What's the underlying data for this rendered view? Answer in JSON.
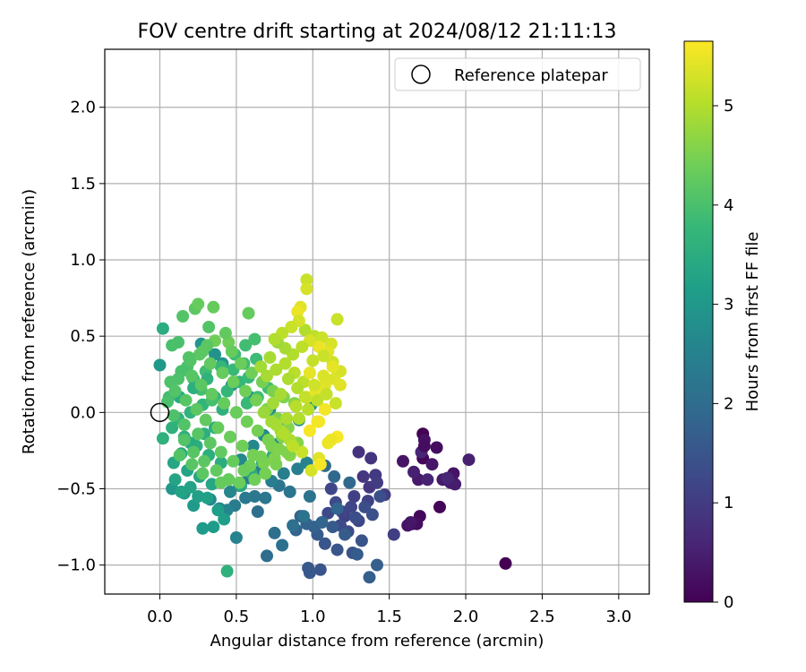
{
  "chart_data": {
    "type": "scatter",
    "title": "FOV centre drift starting at 2024/08/12 21:11:13",
    "xlabel": "Angular distance from reference (arcmin)",
    "ylabel": "Rotation from reference (arcmin)",
    "xlim": [
      -0.36,
      3.2
    ],
    "ylim": [
      -1.19,
      2.38
    ],
    "x_ticks": [
      0.0,
      0.5,
      1.0,
      1.5,
      2.0,
      2.5,
      3.0
    ],
    "x_tick_labels": [
      "0.0",
      "0.5",
      "1.0",
      "1.5",
      "2.0",
      "2.5",
      "3.0"
    ],
    "y_ticks": [
      -1.0,
      -0.5,
      0.0,
      0.5,
      1.0,
      1.5,
      2.0
    ],
    "y_tick_labels": [
      "−1.0",
      "−0.5",
      "0.0",
      "0.5",
      "1.0",
      "1.5",
      "2.0"
    ],
    "grid": true,
    "legend": {
      "placement": "top-right",
      "entries": [
        "Reference platepar"
      ]
    },
    "reference_point": {
      "label": "Reference platepar",
      "x": 0.0,
      "y": 0.0,
      "marker": "open-circle"
    },
    "colorbar": {
      "label": "Hours from first FF file",
      "colormap": "viridis",
      "range": [
        0,
        5.65
      ],
      "ticks": [
        0,
        1,
        2,
        3,
        4,
        5
      ],
      "tick_labels": [
        "0",
        "1",
        "2",
        "3",
        "4",
        "5"
      ]
    },
    "colormap_stops": [
      "#440154",
      "#482878",
      "#3e4989",
      "#31688e",
      "#26828e",
      "#1f9e89",
      "#35b779",
      "#6ece58",
      "#b5de2b",
      "#fde725"
    ],
    "series": [
      {
        "x": [
          1.72,
          2.26,
          1.83,
          1.7,
          1.65,
          1.72,
          1.68,
          1.81,
          1.73,
          1.92,
          1.59,
          1.78,
          1.69,
          1.85,
          1.93,
          1.9,
          1.62,
          2.02,
          1.66,
          1.75,
          1.71,
          1.88,
          1.64,
          1.73
        ],
        "y": [
          -0.14,
          -0.99,
          -0.62,
          -0.68,
          -0.73,
          -0.3,
          -0.73,
          -0.23,
          -0.18,
          -0.4,
          -0.32,
          -0.34,
          -0.44,
          -0.44,
          -0.47,
          -0.46,
          -0.74,
          -0.31,
          -0.39,
          -0.44,
          -0.26,
          -0.43,
          -0.72,
          -0.22
        ],
        "hours": [
          0.0,
          0.0,
          0.05,
          0.1,
          0.15,
          0.1,
          0.2,
          0.2,
          0.25,
          0.3,
          0.3,
          0.35,
          0.4,
          0.4,
          0.45,
          0.45,
          0.3,
          0.5,
          0.5,
          0.55,
          0.6,
          0.6,
          0.35,
          0.2
        ]
      },
      {
        "x": [
          1.3,
          1.38,
          1.33,
          1.37,
          1.41,
          1.42,
          1.47,
          1.53,
          1.36,
          1.27,
          1.21,
          1.19,
          1.25,
          1.3,
          1.12,
          1.15,
          1.1,
          1.18,
          1.23,
          1.28,
          1.34,
          1.39,
          1.44,
          1.32,
          1.26,
          1.16,
          1.08,
          1.05,
          0.98,
          0.97,
          1.03,
          1.13,
          1.21,
          1.29,
          1.37,
          1.42,
          1.01,
          0.92,
          0.89,
          0.96,
          1.06,
          1.16,
          1.24,
          1.14,
          1.08
        ],
        "y": [
          -0.26,
          -0.3,
          -0.42,
          -0.49,
          -0.41,
          -0.46,
          -0.54,
          -0.8,
          -0.58,
          -0.55,
          -0.68,
          -0.65,
          -0.62,
          -0.71,
          -0.5,
          -0.59,
          -0.66,
          -0.74,
          -0.78,
          -0.69,
          -0.62,
          -0.67,
          -0.55,
          -0.84,
          -0.92,
          -0.9,
          -0.86,
          -1.03,
          -1.05,
          -1.02,
          -0.8,
          -0.75,
          -0.8,
          -0.93,
          -1.08,
          -1.0,
          -0.75,
          -0.68,
          -0.77,
          -0.73,
          -0.72,
          -0.63,
          -0.46,
          -0.42,
          -0.35
        ],
        "hours": [
          0.8,
          0.85,
          0.9,
          0.9,
          0.95,
          1.0,
          1.0,
          1.05,
          1.1,
          1.1,
          1.1,
          1.15,
          1.2,
          1.2,
          1.2,
          1.25,
          1.25,
          1.3,
          1.3,
          1.35,
          1.35,
          1.4,
          1.4,
          1.45,
          1.45,
          1.5,
          1.5,
          1.5,
          1.55,
          1.55,
          1.6,
          1.6,
          1.65,
          1.65,
          1.7,
          1.7,
          1.75,
          1.75,
          1.8,
          1.8,
          1.85,
          1.85,
          1.9,
          1.9,
          1.95
        ]
      },
      {
        "x": [
          0.7,
          0.64,
          0.75,
          0.8,
          0.87,
          0.94,
          0.98,
          0.85,
          0.78,
          0.69,
          0.62,
          0.56,
          0.52,
          0.49,
          0.58,
          0.66,
          0.73,
          0.81,
          0.9,
          0.96,
          0.5,
          0.44,
          0.39,
          0.33,
          0.46,
          0.53,
          0.61,
          0.68,
          0.76,
          0.83,
          0.91,
          0.99,
          0.72,
          0.59,
          0.47,
          0.41,
          0.36,
          0.3,
          0.27
        ],
        "y": [
          -0.94,
          -0.65,
          -0.79,
          -0.87,
          -0.74,
          -0.68,
          -0.55,
          -0.52,
          -0.48,
          -0.56,
          -0.55,
          -0.56,
          -0.48,
          -0.61,
          -0.43,
          -0.38,
          -0.45,
          -0.4,
          -0.37,
          -0.33,
          -0.82,
          -0.64,
          -0.63,
          -0.57,
          -0.52,
          -0.31,
          -0.22,
          -0.15,
          -0.21,
          -0.1,
          -0.05,
          0.05,
          0.02,
          0.1,
          0.18,
          0.32,
          0.38,
          0.42,
          0.45
        ],
        "hours": [
          2.0,
          2.05,
          2.05,
          2.1,
          2.1,
          2.15,
          2.15,
          2.2,
          2.2,
          2.25,
          2.25,
          2.3,
          2.3,
          2.35,
          2.35,
          2.4,
          2.4,
          2.45,
          2.45,
          2.5,
          2.5,
          2.55,
          2.55,
          2.6,
          2.6,
          2.65,
          2.65,
          2.7,
          2.7,
          2.75,
          2.75,
          2.8,
          2.8,
          2.85,
          2.85,
          2.9,
          2.9,
          2.95,
          2.95
        ]
      },
      {
        "x": [
          0.0,
          0.08,
          0.16,
          0.22,
          0.28,
          0.35,
          0.42,
          0.38,
          0.31,
          0.25,
          0.2,
          0.14,
          0.1,
          0.18,
          0.26,
          0.34,
          0.45,
          0.53,
          0.6,
          0.67,
          0.74,
          0.4,
          0.32,
          0.24,
          0.16,
          0.08,
          0.12,
          0.2,
          0.28,
          0.36,
          0.44,
          0.52,
          0.58,
          0.48,
          0.55,
          0.63,
          0.3,
          0.22,
          0.27,
          0.34,
          0.41,
          0.5,
          0.57,
          0.64,
          0.71,
          0.36,
          0.29,
          0.2,
          0.14,
          0.09,
          0.13,
          0.22,
          0.31,
          0.4,
          0.49,
          0.56,
          0.62
        ],
        "y": [
          0.31,
          -0.5,
          -0.53,
          -0.61,
          -0.76,
          -0.75,
          -0.7,
          -0.64,
          -0.56,
          -0.55,
          -0.49,
          -0.52,
          -0.44,
          -0.38,
          -0.42,
          -0.47,
          -0.44,
          -0.48,
          -0.4,
          -0.33,
          -0.28,
          -0.33,
          -0.28,
          -0.22,
          -0.16,
          -0.1,
          -0.04,
          0.0,
          0.05,
          0.1,
          0.14,
          0.2,
          0.23,
          0.28,
          0.32,
          0.35,
          0.27,
          0.22,
          0.15,
          0.08,
          0.02,
          0.0,
          0.06,
          0.1,
          0.16,
          -0.1,
          -0.14,
          -0.2,
          -0.27,
          -0.33,
          0.1,
          0.16,
          0.22,
          0.3,
          0.38,
          0.44,
          0.48
        ],
        "hours": [
          3.0,
          3.0,
          3.05,
          3.05,
          3.1,
          3.1,
          3.15,
          3.15,
          3.2,
          3.2,
          3.25,
          3.25,
          3.3,
          3.3,
          3.35,
          3.35,
          3.4,
          3.4,
          3.45,
          3.45,
          3.5,
          3.5,
          3.55,
          3.55,
          3.6,
          3.6,
          3.65,
          3.65,
          3.7,
          3.7,
          3.75,
          3.75,
          3.8,
          3.8,
          3.85,
          3.85,
          3.9,
          3.9,
          3.95,
          3.95,
          3.6,
          3.7,
          3.8,
          3.9,
          3.9,
          3.5,
          3.55,
          3.45,
          3.4,
          3.35,
          3.45,
          3.55,
          3.65,
          3.75,
          3.85,
          3.9,
          3.95
        ]
      },
      {
        "x": [
          0.02,
          0.02,
          0.06,
          0.08,
          0.12,
          0.15,
          0.18,
          0.23,
          0.25,
          0.32,
          0.35,
          0.45,
          0.58,
          0.36,
          0.28,
          0.2,
          0.14,
          0.07,
          0.1,
          0.17,
          0.24,
          0.3,
          0.38,
          0.46,
          0.54,
          0.61,
          0.68,
          0.75,
          0.16,
          0.22,
          0.29,
          0.37,
          0.45,
          0.52,
          0.59,
          0.66,
          0.73,
          0.8,
          0.26,
          0.33,
          0.41,
          0.48,
          0.56,
          0.63,
          0.7,
          0.77,
          0.84,
          0.21,
          0.27,
          0.34,
          0.42,
          0.5,
          0.57,
          0.64,
          0.71,
          0.78,
          0.85,
          0.44,
          0.31,
          0.19,
          0.12,
          0.05,
          0.09,
          0.16,
          0.25,
          0.33,
          0.4,
          0.48,
          0.55,
          0.62,
          0.69,
          0.76,
          0.83,
          0.9,
          0.43,
          0.47,
          0.53,
          0.6,
          0.67,
          0.74,
          0.81,
          0.88,
          0.4,
          0.28,
          0.21,
          0.13
        ],
        "y": [
          0.55,
          -0.17,
          0.1,
          0.44,
          0.46,
          0.63,
          0.3,
          0.68,
          0.71,
          0.56,
          0.69,
          0.46,
          0.65,
          0.47,
          0.4,
          0.34,
          0.27,
          0.2,
          0.14,
          0.08,
          0.02,
          -0.05,
          -0.1,
          -0.16,
          -0.22,
          -0.28,
          -0.33,
          -0.3,
          -0.18,
          -0.26,
          -0.32,
          -0.38,
          -0.44,
          -0.46,
          -0.35,
          -0.29,
          -0.22,
          -0.16,
          0.38,
          0.32,
          0.26,
          0.2,
          0.14,
          0.08,
          0.02,
          -0.04,
          -0.1,
          0.24,
          0.18,
          0.12,
          0.06,
          0.0,
          -0.06,
          -0.12,
          -0.18,
          -0.24,
          -0.28,
          -1.04,
          0.44,
          0.36,
          0.22,
          0.07,
          -0.02,
          -0.08,
          -0.14,
          -0.2,
          -0.26,
          -0.32,
          -0.38,
          -0.44,
          -0.4,
          -0.34,
          -0.26,
          -0.2,
          0.52,
          0.4,
          0.32,
          0.26,
          0.2,
          0.14,
          0.1,
          0.06,
          -0.46,
          -0.4,
          -0.34,
          -0.28
        ],
        "hours": [
          3.5,
          3.6,
          3.9,
          4.0,
          4.0,
          4.1,
          4.0,
          4.2,
          4.3,
          4.1,
          4.3,
          4.4,
          4.3,
          4.4,
          4.2,
          4.1,
          4.0,
          4.05,
          4.1,
          4.15,
          4.2,
          4.25,
          4.3,
          4.35,
          4.4,
          4.45,
          4.5,
          4.55,
          4.1,
          4.15,
          4.2,
          4.25,
          4.3,
          4.35,
          4.4,
          4.45,
          4.5,
          4.55,
          4.2,
          4.25,
          4.3,
          4.35,
          4.4,
          4.45,
          4.5,
          4.55,
          4.6,
          4.15,
          4.2,
          4.25,
          4.3,
          4.35,
          4.4,
          4.45,
          4.5,
          4.55,
          4.6,
          3.6,
          4.2,
          4.1,
          4.05,
          4.0,
          4.05,
          4.1,
          4.15,
          4.2,
          4.25,
          4.3,
          4.35,
          4.4,
          4.45,
          4.5,
          4.55,
          4.6,
          4.25,
          4.3,
          4.35,
          4.4,
          4.45,
          4.5,
          4.55,
          4.6,
          4.3,
          4.2,
          4.15,
          4.1
        ]
      },
      {
        "x": [
          0.96,
          0.96,
          0.92,
          0.9,
          0.95,
          1.01,
          1.06,
          1.12,
          1.16,
          1.1,
          1.04,
          0.98,
          0.93,
          0.87,
          0.82,
          0.77,
          0.72,
          0.66,
          0.7,
          0.76,
          0.82,
          0.88,
          0.94,
          1.0,
          1.07,
          1.13,
          1.18,
          1.14,
          1.08,
          1.02,
          0.96,
          0.9,
          0.84,
          0.79,
          0.74,
          0.68,
          0.73,
          0.79,
          0.85,
          0.91,
          0.97,
          1.03,
          1.09,
          1.15,
          1.16,
          1.1,
          1.04,
          0.99,
          0.93,
          0.87,
          0.81,
          0.76,
          0.83,
          0.89,
          0.95,
          1.01,
          1.07,
          1.13,
          1.08,
          1.03,
          0.98,
          0.91,
          0.86,
          0.8,
          0.75,
          1.05,
          1.12,
          1.18,
          1.04,
          0.98
        ],
        "y": [
          0.87,
          0.81,
          0.69,
          0.66,
          0.54,
          0.5,
          0.49,
          0.45,
          0.61,
          0.4,
          0.43,
          0.47,
          0.43,
          0.38,
          0.42,
          0.46,
          0.36,
          0.3,
          0.24,
          0.28,
          0.32,
          0.26,
          0.2,
          0.34,
          0.37,
          0.33,
          0.27,
          0.22,
          0.18,
          0.14,
          0.1,
          0.16,
          0.22,
          0.12,
          0.06,
          0.0,
          -0.06,
          -0.12,
          -0.18,
          -0.04,
          0.02,
          0.08,
          0.12,
          0.06,
          -0.16,
          -0.2,
          -0.3,
          -0.38,
          -0.26,
          -0.22,
          -0.14,
          -0.08,
          -0.04,
          0.04,
          0.1,
          0.18,
          0.24,
          0.3,
          0.02,
          -0.06,
          -0.12,
          0.6,
          0.56,
          0.52,
          0.48,
          -0.34,
          -0.18,
          0.18,
          -0.06,
          0.26
        ],
        "hours": [
          5.2,
          5.3,
          5.4,
          5.5,
          5.0,
          5.1,
          5.2,
          5.3,
          5.2,
          5.4,
          5.5,
          5.3,
          5.1,
          5.0,
          4.9,
          4.8,
          4.9,
          4.85,
          4.9,
          4.95,
          5.0,
          5.05,
          5.1,
          5.15,
          5.2,
          5.25,
          5.3,
          5.35,
          5.4,
          5.45,
          5.5,
          5.0,
          4.95,
          4.9,
          4.85,
          4.8,
          4.85,
          4.9,
          4.95,
          5.0,
          5.05,
          5.1,
          5.15,
          5.2,
          5.6,
          5.5,
          5.4,
          5.3,
          5.2,
          5.1,
          5.0,
          4.9,
          4.95,
          5.05,
          5.15,
          5.25,
          5.35,
          5.45,
          5.55,
          5.6,
          5.6,
          5.3,
          5.2,
          5.1,
          5.0,
          5.6,
          5.5,
          5.4,
          5.55,
          5.45
        ]
      }
    ]
  }
}
